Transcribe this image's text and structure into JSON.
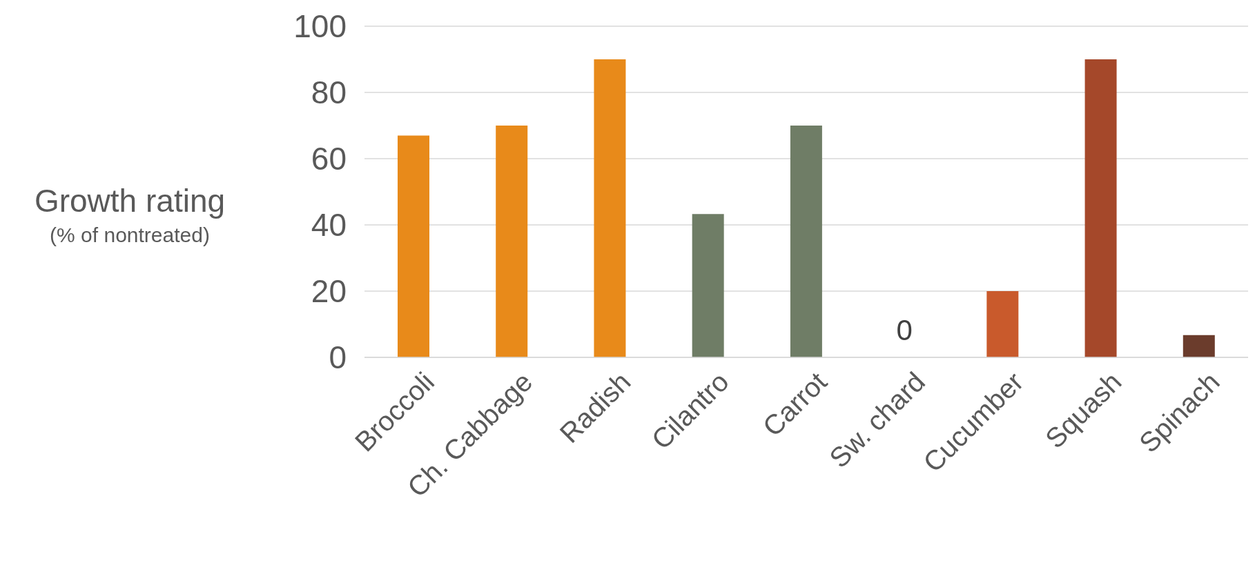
{
  "chart_data": {
    "type": "bar",
    "ylabel": "Growth rating\n(% of nontreated)",
    "categories": [
      "Broccoli",
      "Ch. Cabbage",
      "Radish",
      "Cilantro",
      "Carrot",
      "Sw. chard",
      "Cucumber",
      "Squash",
      "Spinach"
    ],
    "values": [
      67,
      70,
      90,
      43.3,
      70,
      0,
      20,
      90,
      6.7
    ],
    "colors": [
      "#e88a1a",
      "#e88a1a",
      "#e88a1a",
      "#6f7d66",
      "#6f7d66",
      "#6f7d66",
      "#c95a2c",
      "#a5482a",
      "#6b3c2c"
    ],
    "value_labels": [
      null,
      null,
      null,
      null,
      null,
      "0",
      null,
      null,
      null
    ],
    "ylim": [
      0,
      100
    ],
    "yticks": [
      0,
      20,
      40,
      60,
      80,
      100
    ],
    "grid": "y"
  }
}
